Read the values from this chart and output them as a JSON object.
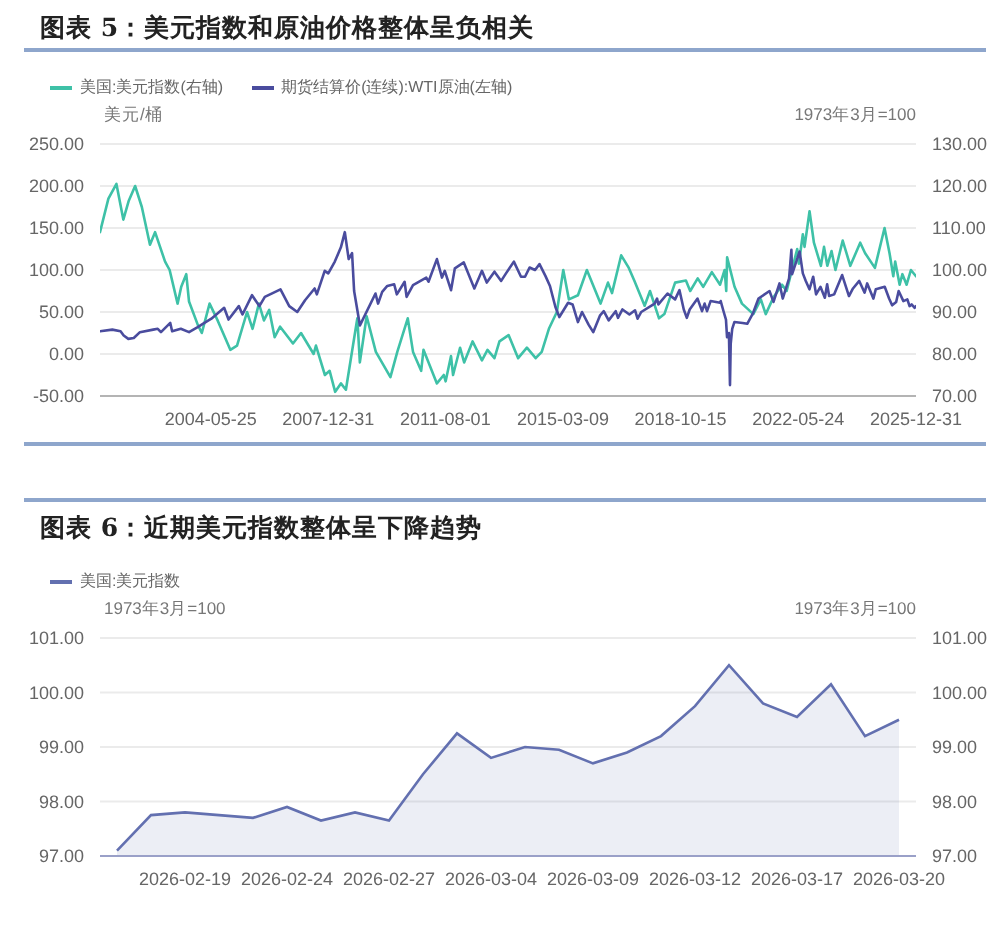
{
  "chart_data": [
    {
      "type": "line",
      "title": "图表 5：美元指数和原油价格整体呈负相关",
      "ylabel": "美元/桶",
      "y2label": "1973年3月=100",
      "xlim": [
        "2001-01-02",
        "2025-12-31"
      ],
      "xticks": [
        "2004-05-25",
        "2007-12-31",
        "2011-08-01",
        "2015-03-09",
        "2018-10-15",
        "2022-05-24",
        "2025-12-31"
      ],
      "ylim": [
        -50,
        250
      ],
      "yticks": [
        {
          "value": -50,
          "label": "-50.00"
        },
        {
          "value": 0,
          "label": "0.00"
        },
        {
          "value": 50,
          "label": "50.00"
        },
        {
          "value": 100,
          "label": "100.00"
        },
        {
          "value": 150,
          "label": "150.00"
        },
        {
          "value": 200,
          "label": "200.00"
        },
        {
          "value": 250,
          "label": "250.00"
        }
      ],
      "y2lim": [
        70,
        130
      ],
      "y2ticks": [
        {
          "value": 70,
          "label": "70.00"
        },
        {
          "value": 80,
          "label": "80.00"
        },
        {
          "value": 90,
          "label": "90.00"
        },
        {
          "value": 100,
          "label": "100.00"
        },
        {
          "value": 110,
          "label": "110.00"
        },
        {
          "value": 120,
          "label": "120.00"
        },
        {
          "value": 130,
          "label": "130.00"
        }
      ],
      "grid": "y",
      "legend": "top left",
      "series": [
        {
          "name": "美国:美元指数(右轴)",
          "color": "#3ec1a7",
          "axis": "y2",
          "x": [
            "2001-01-02",
            "2001-04-06",
            "2001-07-05",
            "2001-09-20",
            "2001-11-20",
            "2002-01-30",
            "2002-04-15",
            "2002-07-15",
            "2002-09-10",
            "2002-12-31",
            "2003-02-20",
            "2003-05-20",
            "2003-06-30",
            "2003-08-25",
            "2003-09-25",
            "2003-12-31",
            "2004-02-15",
            "2004-05-12",
            "2004-08-10",
            "2004-12-30",
            "2005-03-15",
            "2005-07-05",
            "2005-09-05",
            "2005-11-15",
            "2006-01-10",
            "2006-03-10",
            "2006-05-10",
            "2006-07-10",
            "2006-12-01",
            "2007-03-01",
            "2007-07-20",
            "2007-08-15",
            "2007-11-23",
            "2008-01-15",
            "2008-03-17",
            "2008-05-20",
            "2008-07-15",
            "2008-11-20",
            "2008-12-18",
            "2009-03-04",
            "2009-06-15",
            "2009-11-25",
            "2010-02-10",
            "2010-06-07",
            "2010-08-05",
            "2010-11-04",
            "2010-11-30",
            "2011-04-29",
            "2011-07-15",
            "2011-08-05",
            "2011-10-04",
            "2011-10-27",
            "2012-01-13",
            "2012-02-28",
            "2012-06-01",
            "2012-09-14",
            "2012-11-15",
            "2013-02-01",
            "2013-03-29",
            "2013-07-09",
            "2013-10-24",
            "2014-01-30",
            "2014-05-08",
            "2014-07-15",
            "2014-10-03",
            "2014-12-31",
            "2015-03-13",
            "2015-05-15",
            "2015-08-24",
            "2015-12-02",
            "2016-05-03",
            "2016-07-25",
            "2016-09-08",
            "2016-12-20",
            "2017-03-15",
            "2017-05-15",
            "2017-09-08",
            "2017-11-07",
            "2018-02-16",
            "2018-04-17",
            "2018-08-15",
            "2018-12-14",
            "2019-01-31",
            "2019-04-25",
            "2019-06-25",
            "2019-09-30",
            "2019-12-31",
            "2020-02-20",
            "2020-03-09",
            "2020-03-19",
            "2020-06-10",
            "2020-09-01",
            "2021-01-06",
            "2021-03-31",
            "2021-05-25",
            "2021-08-20",
            "2021-11-24",
            "2022-01-14",
            "2022-05-12",
            "2022-05-30",
            "2022-07-14",
            "2022-08-02",
            "2022-09-27",
            "2022-11-15",
            "2023-02-01",
            "2023-03-08",
            "2023-04-14",
            "2023-05-31",
            "2023-07-14",
            "2023-10-03",
            "2023-12-27",
            "2024-04-16",
            "2024-06-10",
            "2024-09-27",
            "2025-01-13",
            "2025-03-10",
            "2025-04-21",
            "2025-05-12",
            "2025-07-01",
            "2025-08-01",
            "2025-09-17",
            "2025-11-04",
            "2025-12-31"
          ],
          "values": [
            109,
            117,
            120.5,
            112,
            116.5,
            120,
            115,
            106,
            109,
            102,
            100,
            92,
            96,
            99,
            92.5,
            87,
            85,
            92,
            88,
            81,
            82,
            90,
            86,
            92,
            88,
            90.5,
            84,
            86.5,
            82.5,
            85,
            80,
            82,
            75,
            76,
            71,
            73,
            71.5,
            88.5,
            78,
            89,
            80.5,
            74.5,
            80.5,
            88.5,
            80.5,
            76,
            81,
            73,
            75,
            73.5,
            79.5,
            75,
            81.5,
            78,
            83,
            78.5,
            81,
            79,
            83,
            84.5,
            79,
            81.5,
            79,
            80.5,
            86,
            90,
            100,
            93,
            94,
            100,
            92,
            97,
            94.5,
            103.5,
            100.5,
            97.5,
            91.5,
            95,
            88.5,
            89.5,
            97,
            97.5,
            95,
            98,
            96,
            99.5,
            96.5,
            100,
            95,
            103,
            96,
            92,
            89.5,
            93,
            89.5,
            93.5,
            96.5,
            95,
            105,
            101.5,
            108.5,
            105.5,
            114,
            106.5,
            101,
            105.5,
            101,
            104.5,
            100,
            107,
            101,
            106.5,
            104,
            100.5,
            110,
            104,
            98.5,
            102,
            96.5,
            99,
            96.5,
            100,
            98.5
          ]
        },
        {
          "name": "期货结算价(连续):WTI原油(左轴)",
          "color": "#4a4c9e",
          "axis": "y",
          "x": [
            "2001-01-02",
            "2001-05-20",
            "2001-08-20",
            "2001-09-24",
            "2001-11-15",
            "2002-01-15",
            "2002-03-25",
            "2002-08-20",
            "2002-10-10",
            "2002-11-15",
            "2003-02-27",
            "2003-03-20",
            "2003-06-25",
            "2003-09-25",
            "2003-12-31",
            "2004-03-15",
            "2004-06-01",
            "2004-10-22",
            "2004-12-10",
            "2005-04-04",
            "2005-05-15",
            "2005-08-30",
            "2005-11-20",
            "2006-01-20",
            "2006-07-14",
            "2006-10-20",
            "2007-01-18",
            "2007-04-15",
            "2007-07-31",
            "2007-08-25",
            "2007-11-21",
            "2007-12-31",
            "2008-03-13",
            "2008-05-20",
            "2008-07-03",
            "2008-08-15",
            "2008-09-22",
            "2008-10-15",
            "2008-12-19",
            "2009-06-11",
            "2009-07-10",
            "2009-08-25",
            "2009-10-21",
            "2010-01-06",
            "2010-02-05",
            "2010-05-03",
            "2010-05-25",
            "2010-08-05",
            "2010-12-31",
            "2011-01-25",
            "2011-04-29",
            "2011-06-25",
            "2011-07-26",
            "2011-10-04",
            "2011-11-16",
            "2012-02-24",
            "2012-06-21",
            "2012-09-14",
            "2012-11-07",
            "2013-02-01",
            "2013-04-17",
            "2013-06-10",
            "2013-09-06",
            "2013-11-25",
            "2014-01-09",
            "2014-03-01",
            "2014-05-01",
            "2014-06-20",
            "2014-08-25",
            "2014-10-15",
            "2014-12-15",
            "2015-01-28",
            "2015-05-06",
            "2015-06-25",
            "2015-08-24",
            "2015-10-09",
            "2015-12-21",
            "2016-02-11",
            "2016-04-28",
            "2016-06-08",
            "2016-08-02",
            "2016-10-19",
            "2016-11-14",
            "2017-01-03",
            "2017-03-22",
            "2017-05-24",
            "2017-06-21",
            "2017-08-01",
            "2017-12-29",
            "2018-01-25",
            "2018-02-09",
            "2018-05-22",
            "2018-08-15",
            "2018-10-03",
            "2018-11-20",
            "2018-12-24",
            "2019-01-25",
            "2019-04-23",
            "2019-06-12",
            "2019-07-11",
            "2019-08-07",
            "2019-09-16",
            "2019-12-31",
            "2020-01-07",
            "2020-02-10",
            "2020-03-06",
            "2020-03-18",
            "2020-04-08",
            "2020-04-20",
            "2020-04-28",
            "2020-05-15",
            "2020-06-08",
            "2020-09-08",
            "2020-10-30",
            "2020-12-31",
            "2021-03-05",
            "2021-07-06",
            "2021-08-20",
            "2021-10-26",
            "2021-12-01",
            "2022-02-10",
            "2022-03-08",
            "2022-03-16",
            "2022-06-08",
            "2022-07-14",
            "2022-08-16",
            "2022-09-26",
            "2022-11-07",
            "2022-12-09",
            "2023-01-27",
            "2023-03-17",
            "2023-04-12",
            "2023-05-04",
            "2023-06-30",
            "2023-09-27",
            "2023-12-12",
            "2024-01-26",
            "2024-04-05",
            "2024-06-04",
            "2024-07-03",
            "2024-09-10",
            "2024-10-07",
            "2025-01-15",
            "2025-03-05",
            "2025-04-08",
            "2025-05-23",
            "2025-06-20",
            "2025-08-12",
            "2025-09-25",
            "2025-10-20",
            "2025-11-12",
            "2025-12-16",
            "2025-12-31"
          ],
          "values": [
            27,
            29,
            27,
            22,
            18,
            19,
            26,
            29,
            30,
            26,
            37,
            27,
            30,
            26,
            32,
            37,
            42,
            55,
            41,
            57,
            47,
            70,
            57,
            68,
            77,
            57,
            50,
            64,
            78,
            71,
            99,
            96,
            110,
            127,
            145,
            113,
            120,
            75,
            34,
            72,
            60,
            74,
            81,
            83,
            71,
            86,
            68,
            82,
            91,
            86,
            113,
            91,
            99,
            76,
            102,
            109,
            78,
            99,
            85,
            98,
            87,
            96,
            110,
            92,
            92,
            103,
            100,
            107,
            93,
            81,
            56,
            44,
            61,
            59,
            38,
            50,
            35,
            26,
            46,
            51,
            40,
            51,
            43,
            53,
            47,
            52,
            42,
            50,
            60,
            66,
            59,
            72,
            65,
            76,
            53,
            43,
            53,
            66,
            51,
            60,
            51,
            63,
            61,
            63,
            50,
            41,
            20,
            25,
            -37,
            12,
            30,
            38,
            37,
            36,
            48,
            66,
            75,
            62,
            84,
            66,
            90,
            124,
            95,
            122,
            96,
            87,
            77,
            92,
            71,
            80,
            67,
            83,
            69,
            71,
            94,
            69,
            78,
            87,
            73,
            84,
            66,
            77,
            80,
            66,
            58,
            62,
            75,
            63,
            65,
            57,
            59,
            55,
            57
          ]
        }
      ]
    },
    {
      "type": "area",
      "title": "图表 6：近期美元指数整体呈下降趋势",
      "ylabel": "1973年3月=100",
      "y2label": "1973年3月=100",
      "categories": [
        null,
        null,
        "2026-02-19",
        null,
        null,
        "2026-02-24",
        null,
        null,
        "2026-02-27",
        null,
        null,
        "2026-03-04",
        null,
        null,
        "2026-03-09",
        null,
        null,
        "2026-03-12",
        null,
        null,
        "2026-03-17",
        null,
        null,
        "2026-03-20"
      ],
      "ylim": [
        97,
        101
      ],
      "yticks": [
        {
          "value": 97,
          "label": "97.00"
        },
        {
          "value": 98,
          "label": "98.00"
        },
        {
          "value": 99,
          "label": "99.00"
        },
        {
          "value": 100,
          "label": "100.00"
        },
        {
          "value": 101,
          "label": "101.00"
        }
      ],
      "y2lim": [
        97,
        101
      ],
      "y2ticks": [
        {
          "value": 97,
          "label": "97.00"
        },
        {
          "value": 98,
          "label": "98.00"
        },
        {
          "value": 99,
          "label": "99.00"
        },
        {
          "value": 100,
          "label": "100.00"
        },
        {
          "value": 101,
          "label": "101.00"
        }
      ],
      "grid": "y",
      "legend": "top left",
      "series": [
        {
          "name": "美国:美元指数",
          "color": "#6370b0",
          "values": [
            97.1,
            97.75,
            97.8,
            97.75,
            97.7,
            97.9,
            97.65,
            97.8,
            97.65,
            98.5,
            99.25,
            98.8,
            99.0,
            98.95,
            98.7,
            98.9,
            99.2,
            99.75,
            100.5,
            99.8,
            99.55,
            100.15,
            99.2,
            99.5
          ]
        }
      ]
    }
  ]
}
